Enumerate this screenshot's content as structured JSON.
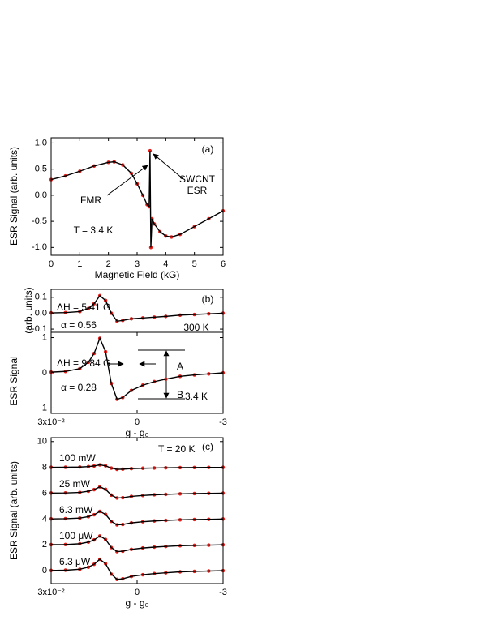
{
  "chart_data": [
    {
      "type": "line",
      "xlabel": "Magnetic Field (kG)",
      "ylabel": "ESR Signal (arb. units)",
      "xlim": [
        0,
        6
      ],
      "xticks": [
        0,
        1,
        2,
        3,
        4,
        5,
        6
      ],
      "ylim": [
        -1.15,
        1.1
      ],
      "yticks": [
        {
          "value": -1,
          "label": "-1.0"
        },
        {
          "value": -0.5,
          "label": "-0.5"
        },
        {
          "value": 0,
          "label": "0.0"
        },
        {
          "value": 0.5,
          "label": "0.5"
        },
        {
          "value": 1,
          "label": "1.0"
        }
      ],
      "marker_color": "#e8211c",
      "annotations": [
        "(a)",
        "FMR",
        "SWCNT",
        "ESR",
        "T = 3.4 K"
      ],
      "x": [
        0,
        0.5,
        1,
        1.5,
        2,
        2.2,
        2.5,
        2.8,
        3,
        3.2,
        3.35,
        3.42,
        3.45,
        3.48,
        3.52,
        3.6,
        3.8,
        4,
        4.2,
        4.5,
        5,
        5.5,
        6
      ],
      "series": [
        {
          "color": "#000000",
          "values": [
            0.3,
            0.37,
            0.46,
            0.56,
            0.63,
            0.64,
            0.58,
            0.42,
            0.22,
            0.0,
            -0.18,
            -0.22,
            0.85,
            -1.0,
            -0.45,
            -0.55,
            -0.7,
            -0.78,
            -0.8,
            -0.75,
            -0.6,
            -0.45,
            -0.3
          ]
        }
      ]
    },
    {
      "type": "line",
      "ylabel": "(arb. units)",
      "xlim": [
        0.03,
        -0.03
      ],
      "ylim": [
        -0.12,
        0.15
      ],
      "yticks": [
        {
          "value": -0.1,
          "label": "-0.1"
        },
        {
          "value": 0,
          "label": "0.0"
        },
        {
          "value": 0.1,
          "label": "0.1"
        }
      ],
      "marker_color": "#e8211c",
      "annotations": [
        "(b)",
        "ΔH = 5.41 G",
        "α = 0.56",
        "300 K"
      ],
      "x": [
        0.03,
        0.025,
        0.02,
        0.017,
        0.015,
        0.013,
        0.011,
        0.009,
        0.007,
        0.005,
        0.002,
        -0.002,
        -0.006,
        -0.01,
        -0.015,
        -0.02,
        -0.025,
        -0.03
      ],
      "series": [
        {
          "color": "#000000",
          "values": [
            0.002,
            0.004,
            0.01,
            0.03,
            0.06,
            0.11,
            0.08,
            0.0,
            -0.05,
            -0.045,
            -0.035,
            -0.03,
            -0.025,
            -0.02,
            -0.012,
            -0.008,
            -0.004,
            0.0
          ]
        }
      ]
    },
    {
      "type": "line",
      "xlabel": "g - g₀",
      "ylabel": "ESR Signal",
      "xlim": [
        0.03,
        -0.03
      ],
      "xticks": [
        {
          "value": 0.03,
          "label": "3x10⁻²"
        },
        0,
        {
          "value": -0.03,
          "label": "-3"
        }
      ],
      "ylim": [
        -1.15,
        1.15
      ],
      "yticks": [
        -1,
        0,
        1
      ],
      "marker_color": "#e8211c",
      "annotations": [
        "ΔH = 9.84 G",
        "α = 0.28",
        "3.4 K",
        "A",
        "B"
      ],
      "x": [
        0.03,
        0.025,
        0.02,
        0.017,
        0.015,
        0.013,
        0.011,
        0.009,
        0.007,
        0.005,
        0.002,
        -0.002,
        -0.006,
        -0.01,
        -0.015,
        -0.02,
        -0.025,
        -0.03
      ],
      "series": [
        {
          "color": "#000000",
          "values": [
            0.02,
            0.04,
            0.12,
            0.3,
            0.55,
            0.98,
            0.6,
            -0.3,
            -0.75,
            -0.7,
            -0.5,
            -0.35,
            -0.25,
            -0.18,
            -0.1,
            -0.06,
            -0.03,
            0.0
          ]
        }
      ]
    },
    {
      "type": "line",
      "xlabel": "g - g₀",
      "ylabel": "ESR Signal (arb. units)",
      "xlim": [
        0.03,
        -0.03
      ],
      "xticks": [
        {
          "value": 0.03,
          "label": "3x10⁻²"
        },
        0,
        {
          "value": -0.03,
          "label": "-3"
        }
      ],
      "ylim": [
        -1,
        10.3
      ],
      "yticks": [
        0,
        2,
        4,
        6,
        8,
        10
      ],
      "marker_color": "#e8211c",
      "annotations": [
        "(c)",
        "T = 20 K",
        "100 mW",
        "25 mW",
        "6.3 mW",
        "100 μW",
        "6.3 μW"
      ],
      "x": [
        0.03,
        0.025,
        0.02,
        0.017,
        0.015,
        0.013,
        0.011,
        0.009,
        0.007,
        0.005,
        0.002,
        -0.002,
        -0.006,
        -0.01,
        -0.015,
        -0.02,
        -0.025,
        -0.03
      ],
      "series": [
        {
          "color": "#000000",
          "values": [
            8.004,
            8.008,
            8.024,
            8.06,
            8.11,
            8.196,
            8.12,
            7.94,
            7.85,
            7.86,
            7.9,
            7.93,
            7.95,
            7.964,
            7.98,
            7.988,
            7.994,
            8.0
          ]
        },
        {
          "color": "#000000",
          "values": [
            6.01,
            6.02,
            6.06,
            6.15,
            6.275,
            6.49,
            6.3,
            5.85,
            5.625,
            5.65,
            5.75,
            5.825,
            5.875,
            5.91,
            5.95,
            5.97,
            5.985,
            6.0
          ]
        },
        {
          "color": "#000000",
          "values": [
            4.012,
            4.024,
            4.072,
            4.18,
            4.33,
            4.588,
            4.36,
            3.82,
            3.55,
            3.58,
            3.7,
            3.79,
            3.85,
            3.892,
            3.94,
            3.964,
            3.982,
            4.0
          ]
        },
        {
          "color": "#000000",
          "values": [
            2.014,
            2.028,
            2.084,
            2.21,
            2.385,
            2.686,
            2.42,
            1.79,
            1.475,
            1.51,
            1.65,
            1.755,
            1.825,
            1.874,
            1.93,
            1.958,
            1.979,
            2.0
          ]
        },
        {
          "color": "#000000",
          "values": [
            0.018,
            0.036,
            0.108,
            0.27,
            0.495,
            0.882,
            0.54,
            -0.27,
            -0.675,
            -0.63,
            -0.45,
            -0.315,
            -0.225,
            -0.162,
            -0.09,
            -0.054,
            -0.027,
            0.0
          ]
        }
      ]
    }
  ]
}
